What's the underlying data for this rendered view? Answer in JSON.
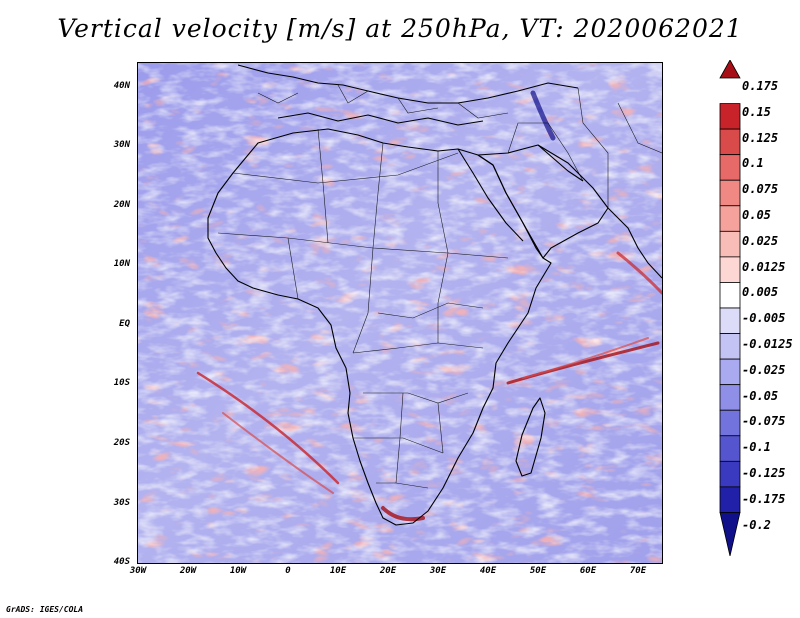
{
  "title": "Vertical velocity [m/s] at 250hPa, VT: 2020062021",
  "credit": "GrADS: IGES/COLA",
  "map": {
    "lat_labels": [
      "40N",
      "30N",
      "20N",
      "10N",
      "EQ",
      "10S",
      "20S",
      "30S",
      "40S"
    ],
    "lon_labels": [
      "30W",
      "20W",
      "10W",
      "0",
      "10E",
      "20E",
      "30E",
      "40E",
      "50E",
      "60E",
      "70E"
    ],
    "lat_range": [
      -40,
      45
    ],
    "lon_range": [
      -30,
      75
    ]
  },
  "colorbar": {
    "labels": [
      "0.175",
      "0.15",
      "0.125",
      "0.1",
      "0.075",
      "0.05",
      "0.025",
      "0.0125",
      "0.005",
      "-0.005",
      "-0.0125",
      "-0.025",
      "-0.05",
      "-0.075",
      "-0.1",
      "-0.125",
      "-0.175",
      "-0.2"
    ],
    "colors": [
      "#a50f15",
      "#c8232a",
      "#d94a4a",
      "#e86a68",
      "#f08884",
      "#f5a29c",
      "#f9bdb7",
      "#fcd7d3",
      "#ffffff",
      "#dcdcf8",
      "#c4c4f4",
      "#aaaaf0",
      "#8f8fe8",
      "#7373dd",
      "#5555d0",
      "#3a3ac0",
      "#2020a8",
      "#10108a"
    ]
  }
}
